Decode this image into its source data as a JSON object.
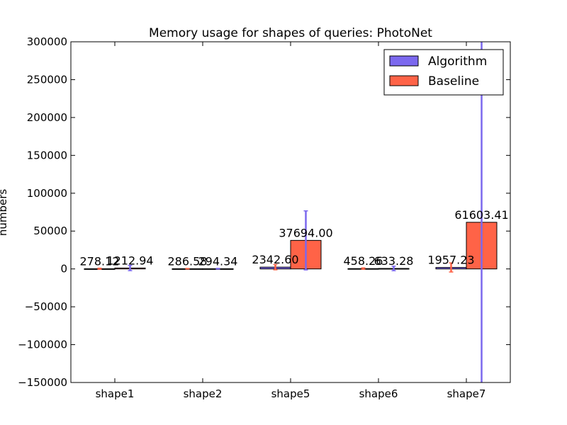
{
  "chart_data": {
    "type": "bar",
    "title": "Memory usage for shapes of queries: PhotoNet",
    "xlabel": "",
    "ylabel": "numbers",
    "ylim": [
      -150000,
      300000
    ],
    "yticks": [
      -150000,
      -100000,
      -50000,
      0,
      50000,
      100000,
      150000,
      200000,
      250000,
      300000
    ],
    "ytick_labels": [
      "−150000",
      "−100000",
      "−50000",
      "0",
      "50000",
      "100000",
      "150000",
      "200000",
      "250000",
      "300000"
    ],
    "categories": [
      "shape1",
      "shape2",
      "shape5",
      "shape6",
      "shape7"
    ],
    "legend_position": "top-right",
    "grid": false,
    "series": [
      {
        "name": "Algorithm",
        "color": "#7b68ee",
        "values": [
          278.12,
          286.58,
          2342.6,
          458.26,
          1957.23
        ],
        "labels": [
          "278.12",
          "286.58",
          "2342.60",
          "458.26",
          "1957.23"
        ],
        "errors": [
          700,
          300,
          3500,
          900,
          6000
        ]
      },
      {
        "name": "Baseline",
        "color": "#ff6347",
        "values": [
          1212.94,
          294.34,
          37694.0,
          633.28,
          61603.41
        ],
        "labels": [
          "1212.94",
          "294.34",
          "37694.00",
          "633.28",
          "61603.41"
        ],
        "errors": [
          3500,
          400,
          39000,
          3000,
          320000
        ]
      }
    ]
  }
}
